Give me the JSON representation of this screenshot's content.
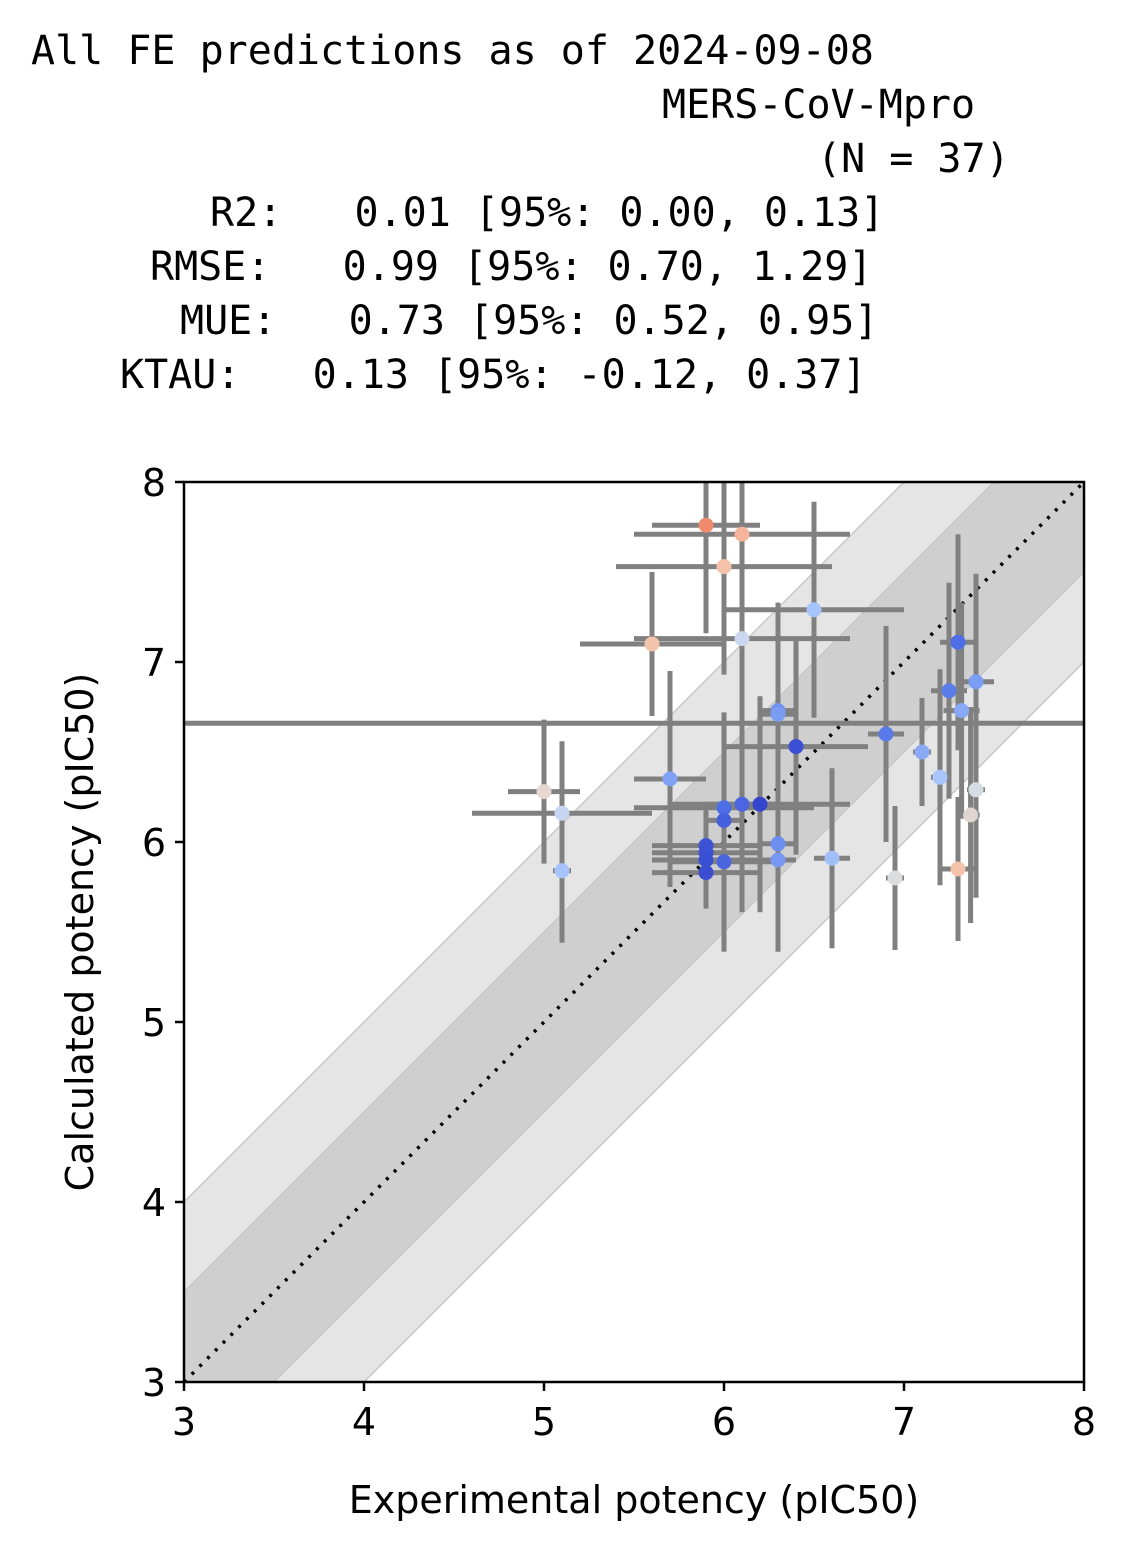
{
  "title_lines": [
    "All FE predictions as of 2024-09-08",
    "MERS-CoV-Mpro",
    "(N = 37)",
    "R2:   0.01 [95%: 0.00, 0.13]",
    "RMSE:   0.99 [95%: 0.70, 1.29]",
    "MUE:   0.73 [95%: 0.52, 0.95]",
    "KTAU:   0.13 [95%: -0.12, 0.37]"
  ],
  "chart_data": {
    "type": "scatter",
    "xlabel": "Experimental potency (pIC50)",
    "ylabel": "Calculated potency (pIC50)",
    "xlim": [
      3,
      8
    ],
    "ylim": [
      3,
      8
    ],
    "xticks": [
      3,
      4,
      5,
      6,
      7,
      8
    ],
    "yticks": [
      3,
      4,
      5,
      6,
      7,
      8
    ],
    "grid": false,
    "diagonal": "dotted y = x",
    "bands": [
      0.5,
      1.0
    ],
    "points": [
      {
        "x": 5.9,
        "y": 7.76,
        "xerr": 0.3,
        "yerr": 0.6,
        "color": "#ef8a6d"
      },
      {
        "x": 6.1,
        "y": 7.71,
        "xerr": 0.6,
        "yerr": 0.6,
        "color": "#f6b49a"
      },
      {
        "x": 6.0,
        "y": 7.53,
        "xerr": 0.6,
        "yerr": 0.6,
        "color": "#f4c2ab"
      },
      {
        "x": 6.5,
        "y": 7.29,
        "xerr": 0.5,
        "yerr": 0.6,
        "color": "#a7c5fd"
      },
      {
        "x": 6.1,
        "y": 7.13,
        "xerr": 0.6,
        "yerr": 0.6,
        "color": "#cbd8ef"
      },
      {
        "x": 5.6,
        "y": 7.1,
        "xerr": 0.4,
        "yerr": 0.4,
        "color": "#f3c3ab"
      },
      {
        "x": 7.3,
        "y": 7.11,
        "xerr": 0.1,
        "yerr": 0.6,
        "color": "#4e6ee8"
      },
      {
        "x": 7.4,
        "y": 6.89,
        "xerr": 0.1,
        "yerr": 0.6,
        "color": "#7a9ef8"
      },
      {
        "x": 7.25,
        "y": 6.84,
        "xerr": 0.1,
        "yerr": 0.6,
        "color": "#5b7de9"
      },
      {
        "x": 7.32,
        "y": 6.73,
        "xerr": 0.1,
        "yerr": 0.6,
        "color": "#88a9f6"
      },
      {
        "x": 6.3,
        "y": 6.73,
        "xerr": 0.1,
        "yerr": 0.6,
        "color": "#7294f1"
      },
      {
        "x": 6.3,
        "y": 6.71,
        "xerr": 0.1,
        "yerr": 0.6,
        "color": "#7a9cf3"
      },
      {
        "x": 6.9,
        "y": 6.6,
        "xerr": 0.1,
        "yerr": 0.6,
        "color": "#5879e8"
      },
      {
        "x": 5.0,
        "y": 6.66,
        "xerr": 3.0,
        "yerr": 0.0,
        "color": "#808080",
        "hidden": true
      },
      {
        "x": 6.4,
        "y": 6.53,
        "xerr": 0.4,
        "yerr": 0.6,
        "color": "#3a4fd6"
      },
      {
        "x": 7.1,
        "y": 6.5,
        "xerr": 0.05,
        "yerr": 0.3,
        "color": "#8aa9f6"
      },
      {
        "x": 7.2,
        "y": 6.36,
        "xerr": 0.05,
        "yerr": 0.6,
        "color": "#a9c5fc"
      },
      {
        "x": 5.7,
        "y": 6.35,
        "xerr": 0.2,
        "yerr": 0.6,
        "color": "#7fa1f6"
      },
      {
        "x": 5.0,
        "y": 6.28,
        "xerr": 0.2,
        "yerr": 0.4,
        "color": "#e6d7d0"
      },
      {
        "x": 7.4,
        "y": 6.29,
        "xerr": 0.05,
        "yerr": 0.6,
        "color": "#d7dce4"
      },
      {
        "x": 6.2,
        "y": 6.21,
        "xerr": 0.5,
        "yerr": 0.6,
        "color": "#3646cc"
      },
      {
        "x": 6.1,
        "y": 6.21,
        "xerr": 0.2,
        "yerr": 0.6,
        "color": "#4b66e0"
      },
      {
        "x": 6.0,
        "y": 6.19,
        "xerr": 0.5,
        "yerr": 0.4,
        "color": "#4e6ee6"
      },
      {
        "x": 5.1,
        "y": 6.16,
        "xerr": 0.5,
        "yerr": 0.4,
        "color": "#c5d5f2"
      },
      {
        "x": 7.37,
        "y": 6.15,
        "xerr": 0.05,
        "yerr": 0.6,
        "color": "#e0d6d1"
      },
      {
        "x": 6.0,
        "y": 6.12,
        "xerr": 0.1,
        "yerr": 0.6,
        "color": "#4560dc"
      },
      {
        "x": 6.3,
        "y": 5.99,
        "xerr": 0.1,
        "yerr": 0.6,
        "color": "#6d8ff0"
      },
      {
        "x": 5.9,
        "y": 5.98,
        "xerr": 0.3,
        "yerr": 0.2,
        "color": "#3c53d4"
      },
      {
        "x": 5.9,
        "y": 5.94,
        "xerr": 0.3,
        "yerr": 0.2,
        "color": "#3b52d4"
      },
      {
        "x": 6.6,
        "y": 5.91,
        "xerr": 0.1,
        "yerr": 0.5,
        "color": "#a0bff9"
      },
      {
        "x": 6.3,
        "y": 5.9,
        "xerr": 0.1,
        "yerr": 0.5,
        "color": "#7698f2"
      },
      {
        "x": 5.9,
        "y": 5.9,
        "xerr": 0.3,
        "yerr": 0.2,
        "color": "#3a50d2"
      },
      {
        "x": 6.0,
        "y": 5.89,
        "xerr": 0.3,
        "yerr": 0.5,
        "color": "#4a65dd"
      },
      {
        "x": 5.1,
        "y": 5.84,
        "xerr": 0.05,
        "yerr": 0.4,
        "color": "#a6c3fb"
      },
      {
        "x": 5.9,
        "y": 5.83,
        "xerr": 0.3,
        "yerr": 0.2,
        "color": "#3b4ed2"
      },
      {
        "x": 7.3,
        "y": 5.85,
        "xerr": 0.1,
        "yerr": 0.4,
        "color": "#f4c3aa"
      },
      {
        "x": 6.95,
        "y": 5.8,
        "xerr": 0.05,
        "yerr": 0.4,
        "color": "#dbdcdd"
      }
    ]
  }
}
